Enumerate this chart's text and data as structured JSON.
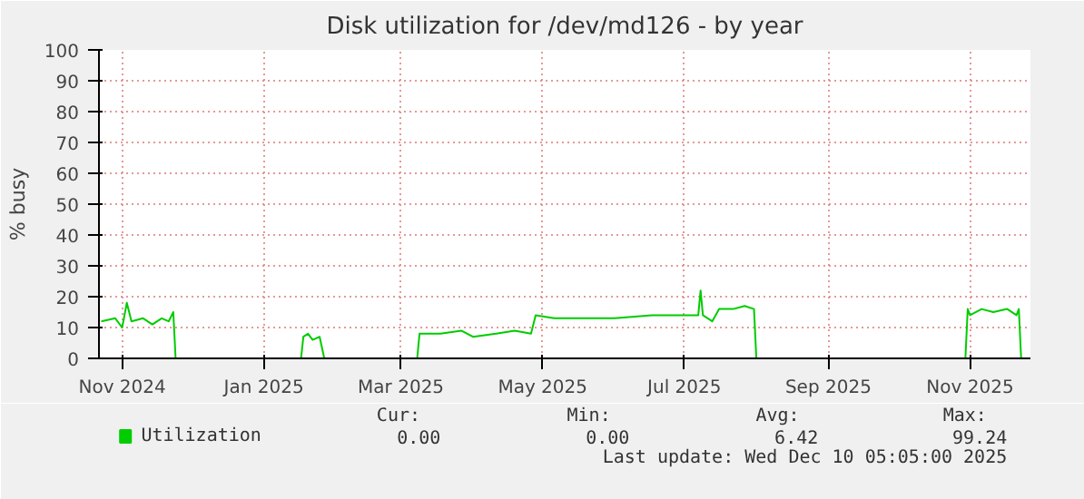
{
  "chart_data": {
    "type": "line",
    "title": "Disk utilization for /dev/md126 - by year",
    "ylabel": "% busy",
    "x": [
      "2024-11-06",
      "2024-11-12",
      "2024-11-15",
      "2024-11-17",
      "2024-11-19",
      "2024-11-24",
      "2024-11-28",
      "2024-12-02",
      "2024-12-05",
      "2024-12-07",
      "2024-12-08",
      "2025-01-31",
      "2025-02-01",
      "2025-02-03",
      "2025-02-05",
      "2025-02-08",
      "2025-02-10",
      "2025-03-22",
      "2025-03-23",
      "2025-04-01",
      "2025-04-10",
      "2025-04-15",
      "2025-04-25",
      "2025-05-03",
      "2025-05-10",
      "2025-05-12",
      "2025-05-20",
      "2025-06-01",
      "2025-06-15",
      "2025-07-01",
      "2025-07-11",
      "2025-07-21",
      "2025-07-22",
      "2025-07-23",
      "2025-07-27",
      "2025-07-30",
      "2025-08-05",
      "2025-08-10",
      "2025-08-14",
      "2025-08-15",
      "2025-11-13",
      "2025-11-14",
      "2025-11-15",
      "2025-11-20",
      "2025-11-25",
      "2025-12-01",
      "2025-12-05",
      "2025-12-06",
      "2025-12-07",
      "2025-12-10"
    ],
    "series": [
      {
        "name": "Utilization",
        "color": "#00cc00",
        "values": [
          12,
          13,
          10,
          18,
          12,
          13,
          11,
          13,
          12,
          15,
          0,
          0,
          7,
          8,
          6,
          7,
          0,
          0,
          8,
          8,
          9,
          7,
          8,
          9,
          8,
          14,
          13,
          13,
          13,
          14,
          14,
          14,
          22,
          14,
          12,
          16,
          16,
          17,
          16,
          0,
          0,
          16,
          14,
          16,
          15,
          16,
          14,
          16,
          0,
          0
        ]
      }
    ],
    "xlim": [
      "2024-11-05",
      "2025-12-11"
    ],
    "ylim": [
      0,
      100
    ],
    "xticks": [
      {
        "value": "2024-11-15",
        "label": "Nov 2024"
      },
      {
        "value": "2025-01-15",
        "label": "Jan 2025"
      },
      {
        "value": "2025-03-15",
        "label": "Mar 2025"
      },
      {
        "value": "2025-05-15",
        "label": "May 2025"
      },
      {
        "value": "2025-07-15",
        "label": "Jul 2025"
      },
      {
        "value": "2025-09-15",
        "label": "Sep 2025"
      },
      {
        "value": "2025-11-15",
        "label": "Nov 2025"
      }
    ],
    "yticks": [
      0,
      10,
      20,
      30,
      40,
      50,
      60,
      70,
      80,
      90,
      100
    ],
    "grid": true,
    "legend": "bottom",
    "annotations": [
      "Cur:",
      "Min:",
      "Avg:",
      "Max:",
      "0.00",
      "0.00",
      "6.42",
      "99.24",
      "Last update: Wed Dec 10 05:05:00 2025"
    ]
  }
}
